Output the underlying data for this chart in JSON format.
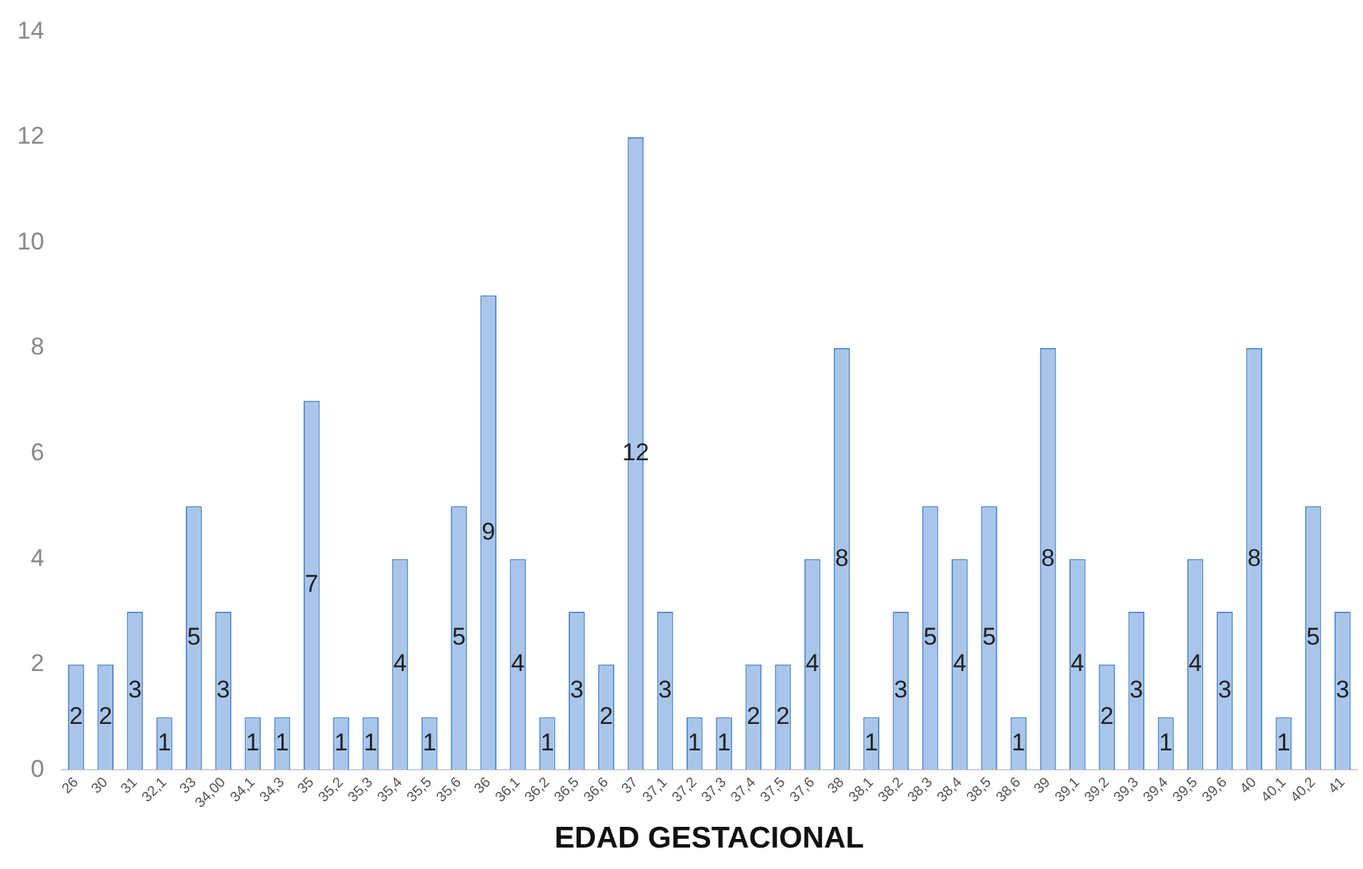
{
  "chart_data": {
    "type": "bar",
    "xlabel": "EDAD GESTACIONAL",
    "categories": [
      "26",
      "30",
      "31",
      "32,1",
      "33",
      "34,00",
      "34,1",
      "34,3",
      "35",
      "35,2",
      "35,3",
      "35,4",
      "35,5",
      "35,6",
      "36",
      "36,1",
      "36,2",
      "36,5",
      "36,6",
      "37",
      "37,1",
      "37,2",
      "37,3",
      "37,4",
      "37,5",
      "37,6",
      "38",
      "38,1",
      "38,2",
      "38,3",
      "38,4",
      "38,5",
      "38,6",
      "39",
      "39,1",
      "39,2",
      "39,3",
      "39,4",
      "39,5",
      "39,6",
      "40",
      "40,1",
      "40,2",
      "41"
    ],
    "values": [
      2,
      2,
      3,
      1,
      5,
      3,
      1,
      1,
      7,
      1,
      1,
      4,
      1,
      5,
      9,
      4,
      1,
      3,
      2,
      12,
      3,
      1,
      1,
      2,
      2,
      4,
      8,
      1,
      3,
      5,
      4,
      5,
      1,
      8,
      4,
      2,
      3,
      1,
      4,
      3,
      8,
      1,
      5,
      3
    ],
    "color": "#a9c6ea",
    "ylim": [
      0,
      14
    ],
    "yticks": [
      0,
      2,
      4,
      6,
      8,
      10,
      12,
      14
    ],
    "grid": false,
    "legend": false,
    "data_labels": true
  }
}
